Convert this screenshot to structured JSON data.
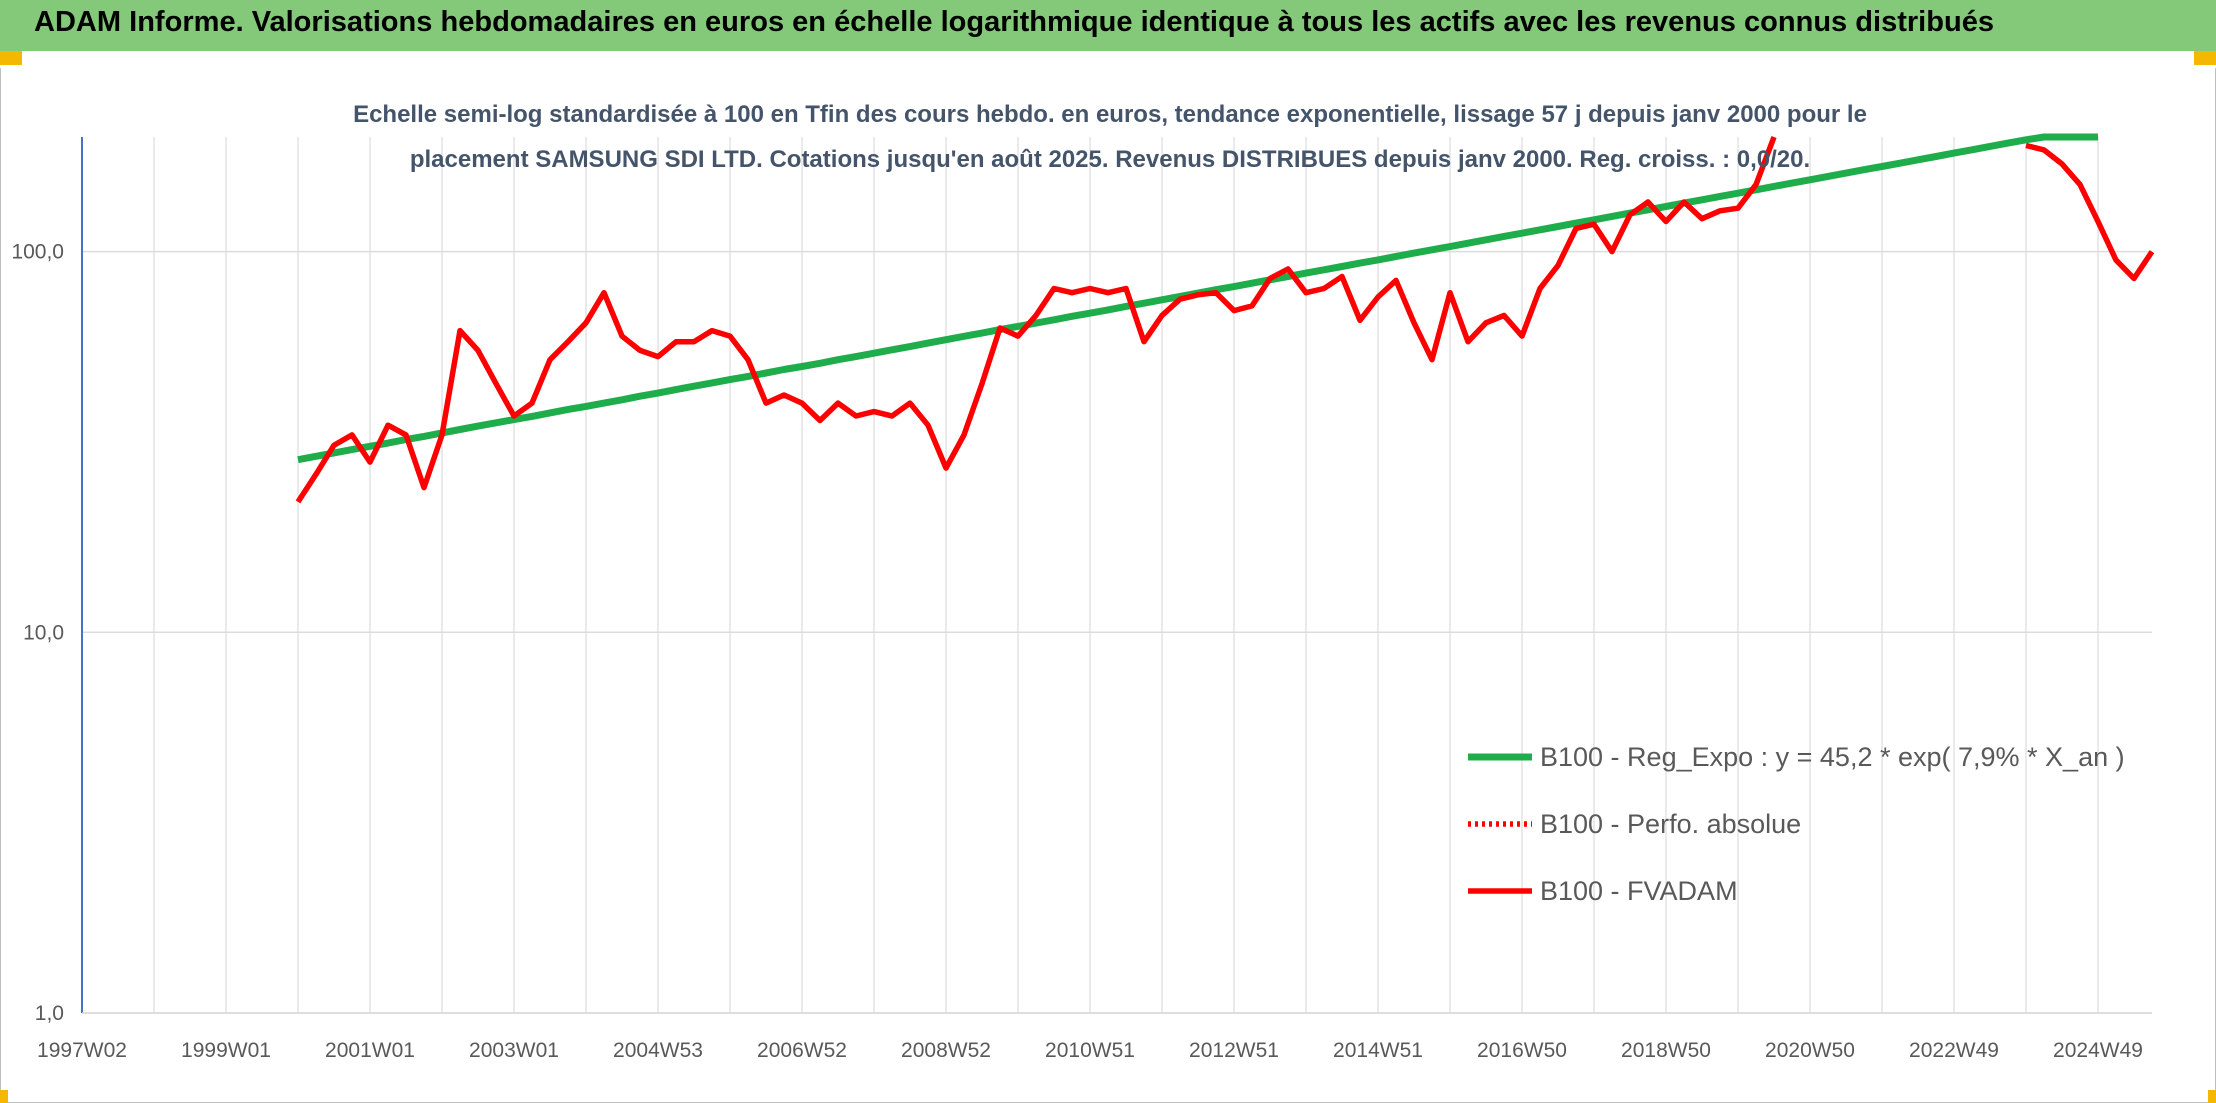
{
  "chart_data": {
    "type": "line",
    "title": "ADAM Informe. Valorisations hebdomadaires en euros en échelle logarithmique identique à tous les actifs avec les revenus connus distribués",
    "subtitle": "Echelle semi-log standardisée à 100 en Tfin des cours hebdo. en euros, tendance exponentielle, lissage 57 j depuis janv 2000 pour le placement SAMSUNG SDI LTD. Cotations jusqu'en août 2025. Revenus DISTRIBUES depuis janv 2000. Reg. croiss. : 0,0/20.",
    "log_y": true,
    "grid": true,
    "legend": "right",
    "ylim": [
      1,
      200
    ],
    "yticks": [
      {
        "value": 1,
        "label": "1,0"
      },
      {
        "value": 10,
        "label": "10,0"
      },
      {
        "value": 100,
        "label": "100,0"
      }
    ],
    "categories": [
      "1997W02",
      null,
      null,
      null,
      null,
      null,
      null,
      null,
      "1999W01",
      null,
      null,
      null,
      null,
      null,
      null,
      null,
      "2001W01",
      null,
      null,
      null,
      null,
      null,
      null,
      null,
      "2003W01",
      null,
      null,
      null,
      null,
      null,
      null,
      null,
      "2004W53",
      null,
      null,
      null,
      null,
      null,
      null,
      null,
      "2006W52",
      null,
      null,
      null,
      null,
      null,
      null,
      null,
      "2008W52",
      null,
      null,
      null,
      null,
      null,
      null,
      null,
      "2010W51",
      null,
      null,
      null,
      null,
      null,
      null,
      null,
      "2012W51",
      null,
      null,
      null,
      null,
      null,
      null,
      null,
      "2014W51",
      null,
      null,
      null,
      null,
      null,
      null,
      null,
      "2016W50",
      null,
      null,
      null,
      null,
      null,
      null,
      null,
      "2018W50",
      null,
      null,
      null,
      null,
      null,
      null,
      null,
      "2020W50",
      null,
      null,
      null,
      null,
      null,
      null,
      null,
      "2022W49",
      null,
      null,
      null,
      null,
      null,
      null,
      null,
      "2024W49",
      null,
      null,
      null
    ],
    "series": [
      {
        "name": "B100 - Reg_Expo : y = 45,2 * exp( 7,9% *  X_an )",
        "color": "#1fad4b",
        "dashed": false,
        "values": [
          null,
          null,
          null,
          null,
          null,
          null,
          null,
          null,
          null,
          null,
          null,
          null,
          28.4,
          29.0,
          29.6,
          30.2,
          30.8,
          31.4,
          32.1,
          32.7,
          33.4,
          34.1,
          34.8,
          35.5,
          36.2,
          36.9,
          37.7,
          38.5,
          39.2,
          40.0,
          40.8,
          41.7,
          42.5,
          43.4,
          44.3,
          45.2,
          46.1,
          47.0,
          48.0,
          49.0,
          49.9,
          50.9,
          52.0,
          53.0,
          54.1,
          55.2,
          56.3,
          57.5,
          58.7,
          59.9,
          61.1,
          62.4,
          63.6,
          64.9,
          66.2,
          67.6,
          68.9,
          70.3,
          71.8,
          73.2,
          74.7,
          76.2,
          77.8,
          79.4,
          80.9,
          82.6,
          84.3,
          86.0,
          87.8,
          89.6,
          91.4,
          93.3,
          95.1,
          97.1,
          99.1,
          101.1,
          103.1,
          105.2,
          107.4,
          109.6,
          111.8,
          114.1,
          116.4,
          118.8,
          121.2,
          123.7,
          126.2,
          128.8,
          131.4,
          134.1,
          136.8,
          139.6,
          142.4,
          145.3,
          148.3,
          151.3,
          154.4,
          157.6,
          160.8,
          164.1,
          167.3,
          170.7,
          174.2,
          177.8,
          181.4,
          185.1,
          188.9,
          192.8,
          196.6,
          200,
          200,
          200,
          200,
          null,
          null,
          null
        ]
      },
      {
        "name": "B100 - Perfo. absolue",
        "color": "#ff0000",
        "dashed": true,
        "values": [
          null,
          null,
          null,
          null,
          null,
          null,
          null,
          null,
          null,
          null,
          null,
          null,
          null,
          null,
          null,
          null,
          null,
          null,
          null,
          null,
          null,
          null,
          null,
          null,
          null,
          null,
          null,
          null,
          null,
          null,
          null,
          null,
          null,
          null,
          null,
          null,
          null,
          null,
          null,
          null,
          null,
          null,
          null,
          null,
          null,
          null,
          null,
          null,
          null,
          null,
          null,
          null,
          null,
          null,
          null,
          null,
          null,
          null,
          null,
          null,
          null,
          null,
          null,
          null,
          null,
          null,
          null,
          null,
          null,
          null,
          null,
          null,
          null,
          null,
          null,
          null,
          null,
          null,
          null,
          null,
          null,
          null,
          null,
          null,
          null,
          null,
          null,
          null,
          null,
          null,
          null,
          null,
          null,
          null,
          null,
          null,
          null,
          null,
          null,
          null,
          null,
          null,
          null,
          null,
          null,
          null,
          null,
          null,
          null,
          null,
          null,
          null,
          null,
          null,
          null,
          null
        ]
      },
      {
        "name": "B100 - FVADAM",
        "color": "#ff0000",
        "dashed": false,
        "values": [
          null,
          null,
          null,
          null,
          null,
          null,
          null,
          null,
          null,
          null,
          null,
          null,
          22,
          26,
          31,
          33,
          28,
          35,
          33,
          24,
          33,
          62,
          55,
          45,
          37,
          40,
          52,
          58,
          65,
          78,
          60,
          55,
          53,
          58,
          58,
          62,
          60,
          52,
          40,
          42,
          40,
          36,
          40,
          37,
          38,
          37,
          40,
          35,
          27,
          33,
          45,
          63,
          60,
          68,
          80,
          78,
          80,
          78,
          80,
          58,
          68,
          75,
          77,
          78,
          70,
          72,
          85,
          90,
          78,
          80,
          86,
          66,
          76,
          84,
          65,
          52,
          78,
          58,
          65,
          68,
          60,
          80,
          92,
          115,
          118,
          100,
          125,
          135,
          120,
          135,
          122,
          128,
          130,
          150,
          200,
          null,
          null,
          null,
          null,
          null,
          null,
          null,
          null,
          null,
          null,
          null,
          null,
          null,
          190,
          185,
          170,
          150,
          120,
          95,
          85,
          100
        ]
      }
    ]
  }
}
